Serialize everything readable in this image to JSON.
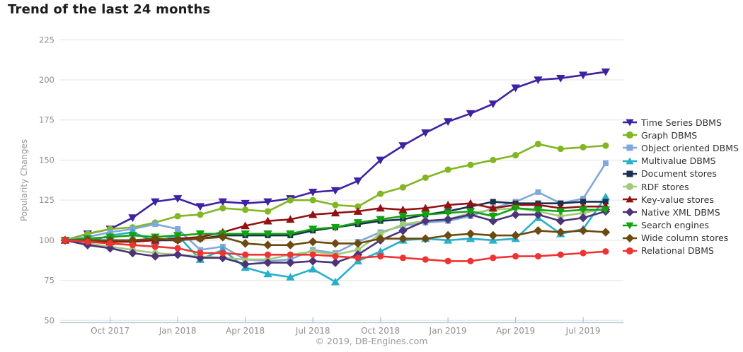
{
  "title": "Trend of the last 24 months",
  "footer": "© 2019, DB-Engines.com",
  "colors": {
    "title_text": "#1c1c1c",
    "tick_text": "#8f8f8f",
    "axis_label_text": "#9a9a9a",
    "legend_text": "#333333",
    "gridline": "#e3e3e3",
    "axis_line": "#a9c6d8"
  },
  "chart_data": {
    "type": "line",
    "title": "Trend of the last 24 months",
    "xlabel": "",
    "ylabel": "Popularity Changes",
    "ylim": [
      50,
      225
    ],
    "yticks": [
      225,
      200,
      175,
      150,
      125,
      100,
      75,
      50
    ],
    "grid": "horizontal",
    "legend_position": "right",
    "x": [
      "Aug 2017",
      "Sep 2017",
      "Oct 2017",
      "Nov 2017",
      "Dec 2017",
      "Jan 2018",
      "Feb 2018",
      "Mar 2018",
      "Apr 2018",
      "May 2018",
      "Jun 2018",
      "Jul 2018",
      "Aug 2018",
      "Sep 2018",
      "Oct 2018",
      "Nov 2018",
      "Dec 2018",
      "Jan 2019",
      "Feb 2019",
      "Mar 2019",
      "Apr 2019",
      "May 2019",
      "Jun 2019",
      "Jul 2019",
      "Aug 2019"
    ],
    "xtick_labels": [
      "Oct 2017",
      "Jan 2018",
      "Apr 2018",
      "Jul 2018",
      "Oct 2018",
      "Jan 2019",
      "Apr 2019",
      "Jul 2019"
    ],
    "xtick_month_indices": [
      2,
      5,
      8,
      11,
      14,
      17,
      20,
      23
    ],
    "series": [
      {
        "name": "Time Series DBMS",
        "color": "#3d22a3",
        "marker": "triangle-down",
        "values": [
          100,
          104,
          107,
          114,
          124,
          126,
          121,
          124,
          123,
          124,
          126,
          130,
          131,
          137,
          150,
          159,
          167,
          174,
          179,
          185,
          195,
          200,
          201,
          203,
          205
        ]
      },
      {
        "name": "Graph DBMS",
        "color": "#82b622",
        "marker": "circle",
        "values": [
          100,
          104,
          107,
          108,
          111,
          115,
          116,
          120,
          119,
          118,
          125,
          125,
          122,
          121,
          129,
          133,
          139,
          144,
          147,
          150,
          153,
          160,
          157,
          158,
          159
        ]
      },
      {
        "name": "Object oriented DBMS",
        "color": "#7fa8dc",
        "marker": "square",
        "values": [
          100,
          102,
          105,
          107,
          110,
          107,
          94,
          96,
          88,
          87,
          88,
          94,
          92,
          99,
          105,
          109,
          111,
          112,
          115,
          120,
          124,
          130,
          123,
          126,
          148
        ]
      },
      {
        "name": "Multivalue DBMS",
        "color": "#28b0c9",
        "marker": "triangle-up",
        "values": [
          100,
          99,
          103,
          105,
          99,
          103,
          88,
          94,
          83,
          79,
          77,
          82,
          74,
          87,
          93,
          100,
          101,
          100,
          101,
          100,
          101,
          114,
          104,
          107,
          127
        ]
      },
      {
        "name": "Document stores",
        "color": "#1a3050",
        "marker": "square",
        "values": [
          100,
          100,
          100,
          100,
          100,
          100,
          101,
          103,
          103,
          103,
          103,
          106,
          108,
          110,
          112,
          113,
          116,
          118,
          121,
          124,
          123,
          123,
          123,
          124,
          124
        ]
      },
      {
        "name": "RDF stores",
        "color": "#a3ca7b",
        "marker": "circle",
        "values": [
          100,
          98,
          96,
          94,
          92,
          91,
          90,
          89,
          88,
          88,
          91,
          93,
          91,
          94,
          104,
          110,
          112,
          113,
          117,
          119,
          120,
          118,
          115,
          117,
          120
        ]
      },
      {
        "name": "Key-value stores",
        "color": "#931112",
        "marker": "triangle-up",
        "values": [
          100,
          99,
          99,
          99,
          100,
          101,
          102,
          105,
          109,
          112,
          113,
          116,
          117,
          118,
          120,
          119,
          120,
          122,
          123,
          120,
          122,
          122,
          120,
          121,
          121
        ]
      },
      {
        "name": "Native XML DBMS",
        "color": "#4d3379",
        "marker": "diamond",
        "values": [
          100,
          97,
          95,
          92,
          90,
          91,
          89,
          89,
          85,
          86,
          86,
          87,
          86,
          91,
          100,
          106,
          112,
          113,
          116,
          112,
          116,
          116,
          112,
          114,
          118
        ]
      },
      {
        "name": "Search engines",
        "color": "#12a212",
        "marker": "triangle-down",
        "values": [
          100,
          101,
          102,
          103,
          102,
          103,
          104,
          104,
          104,
          104,
          104,
          107,
          108,
          111,
          113,
          115,
          116,
          117,
          118,
          115,
          120,
          119,
          118,
          119,
          119
        ]
      },
      {
        "name": "Wide column stores",
        "color": "#6d4a0f",
        "marker": "diamond",
        "values": [
          100,
          100,
          100,
          100,
          101,
          100,
          101,
          102,
          98,
          97,
          97,
          99,
          98,
          98,
          101,
          101,
          101,
          103,
          104,
          103,
          103,
          106,
          105,
          106,
          105
        ]
      },
      {
        "name": "Relational DBMS",
        "color": "#ef3333",
        "marker": "circle",
        "values": [
          100,
          99,
          98,
          97,
          96,
          95,
          92,
          92,
          91,
          91,
          91,
          91,
          90,
          89,
          90,
          89,
          88,
          87,
          87,
          89,
          90,
          90,
          91,
          92,
          93
        ]
      }
    ]
  }
}
